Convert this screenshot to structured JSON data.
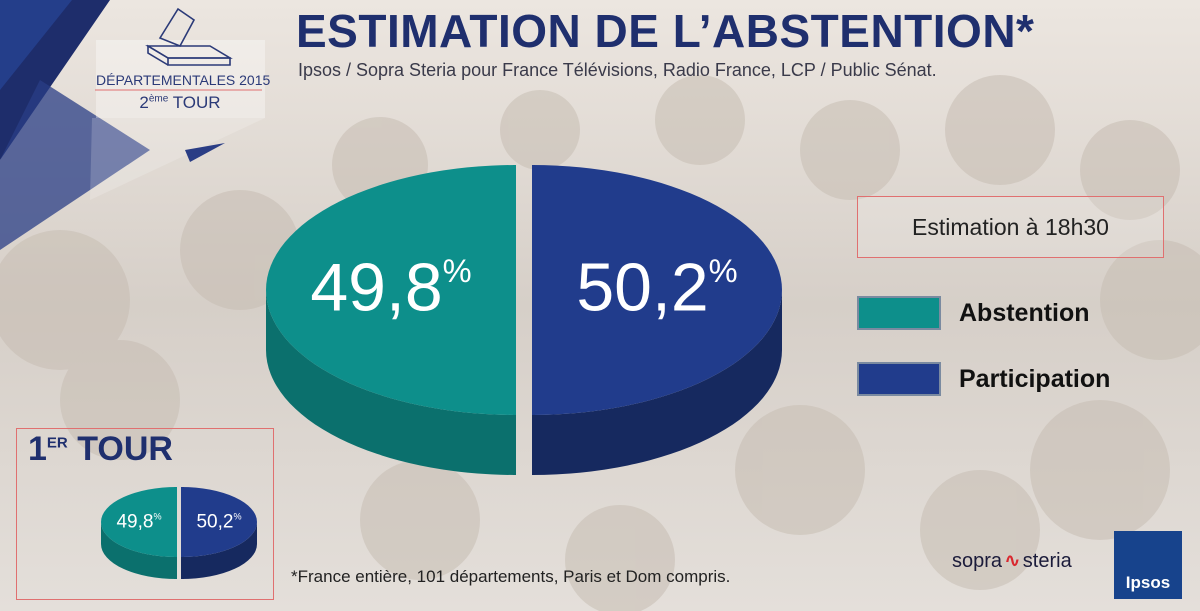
{
  "header": {
    "title": "ESTIMATION DE L’ABSTENTION*",
    "subtitle": "Ipsos / Sopra Steria pour France Télévisions, Radio France, LCP / Public Sénat."
  },
  "badge": {
    "election": "DÉPARTEMENTALES 2015",
    "round_number": "2",
    "round_suffix": "ème",
    "round_word": "TOUR"
  },
  "legend": {
    "time": "Estimation à 18h30",
    "items": [
      {
        "label": "Abstention",
        "color": "#0d8f8b"
      },
      {
        "label": "Participation",
        "color": "#213c8c"
      }
    ]
  },
  "first_round": {
    "number": "1",
    "suffix": "ER",
    "word": "TOUR"
  },
  "footnote": "*France entière, 101 départements, Paris et Dom compris.",
  "logos": {
    "sopra_left": "sopra",
    "sopra_right": "steria",
    "ipsos": "Ipsos"
  },
  "colors": {
    "abstention": "#0d8f8b",
    "participation": "#213c8c",
    "title": "#1f2f6e"
  },
  "chart_data": [
    {
      "type": "pie",
      "categories": [
        "Abstention",
        "Participation"
      ],
      "values": [
        49.8,
        50.2
      ],
      "labels": [
        "49,8",
        "50,2"
      ],
      "unit": "%"
    },
    {
      "type": "pie",
      "title": "1ER TOUR",
      "categories": [
        "Abstention",
        "Participation"
      ],
      "values": [
        49.8,
        50.2
      ],
      "labels": [
        "49,8",
        "50,2"
      ],
      "unit": "%"
    }
  ]
}
